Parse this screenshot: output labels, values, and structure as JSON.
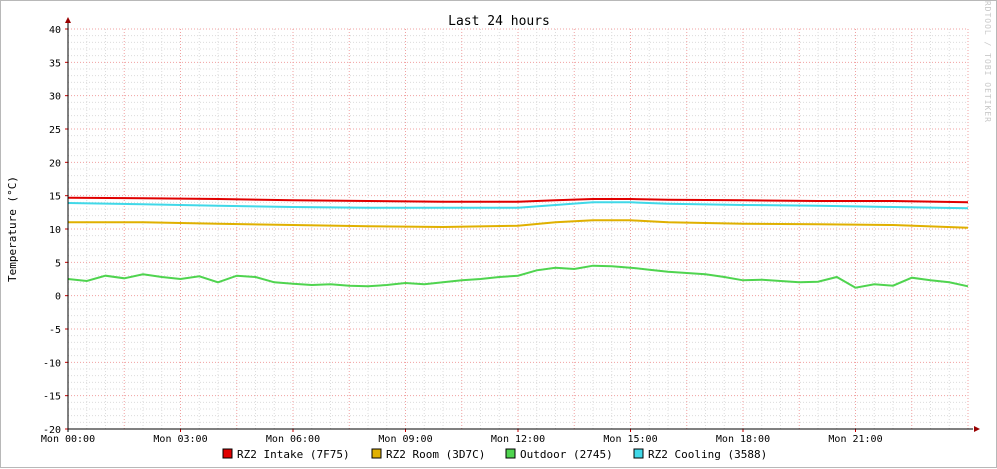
{
  "chart_data": {
    "type": "line",
    "title": "Last 24 hours",
    "ylabel": "Temperature (°C)",
    "watermark": "RRDTOOL / TOBI OETIKER",
    "ylim": [
      -20,
      40
    ],
    "y_ticks": [
      -20,
      -15,
      -10,
      -5,
      0,
      5,
      10,
      15,
      20,
      25,
      30,
      35,
      40
    ],
    "x_hours_range": [
      0,
      24
    ],
    "x_tick_hours": [
      0,
      3,
      6,
      9,
      12,
      15,
      18,
      21
    ],
    "x_tick_labels": [
      "Mon 00:00",
      "Mon 03:00",
      "Mon 06:00",
      "Mon 09:00",
      "Mon 12:00",
      "Mon 15:00",
      "Mon 18:00",
      "Mon 21:00"
    ],
    "grid": true,
    "legend_position": "bottom",
    "series": [
      {
        "name": "RZ2 Intake (7F75)",
        "color": "#e00000",
        "x": [
          0,
          2,
          4,
          6,
          8,
          10,
          12,
          13,
          14,
          15,
          16,
          18,
          20,
          22,
          24
        ],
        "y": [
          14.7,
          14.6,
          14.5,
          14.3,
          14.2,
          14.1,
          14.1,
          14.3,
          14.5,
          14.5,
          14.4,
          14.3,
          14.2,
          14.2,
          14.0
        ]
      },
      {
        "name": "RZ2 Room (3D7C)",
        "color": "#e0b000",
        "x": [
          0,
          2,
          4,
          6,
          8,
          10,
          12,
          13,
          14,
          15,
          16,
          18,
          20,
          22,
          24
        ],
        "y": [
          11.0,
          11.0,
          10.8,
          10.6,
          10.4,
          10.3,
          10.5,
          11.0,
          11.3,
          11.3,
          11.0,
          10.8,
          10.7,
          10.6,
          10.2
        ]
      },
      {
        "name": "Outdoor (2745)",
        "color": "#4fd44f",
        "x": [
          0,
          0.5,
          1,
          1.5,
          2,
          2.5,
          3,
          3.5,
          4,
          4.5,
          5,
          5.5,
          6,
          6.5,
          7,
          7.5,
          8,
          8.5,
          9,
          9.5,
          10,
          10.5,
          11,
          11.5,
          12,
          12.5,
          13,
          13.5,
          14,
          14.5,
          15,
          15.5,
          16,
          16.5,
          17,
          17.5,
          18,
          18.5,
          19,
          19.5,
          20,
          20.5,
          21,
          21.5,
          22,
          22.5,
          23,
          23.5,
          24
        ],
        "y": [
          2.5,
          2.2,
          3.0,
          2.6,
          3.2,
          2.8,
          2.5,
          2.9,
          2.0,
          3.0,
          2.8,
          2.0,
          1.8,
          1.6,
          1.7,
          1.5,
          1.4,
          1.6,
          1.9,
          1.7,
          2.0,
          2.3,
          2.5,
          2.8,
          3.0,
          3.8,
          4.2,
          4.0,
          4.5,
          4.4,
          4.2,
          3.9,
          3.6,
          3.4,
          3.2,
          2.8,
          2.3,
          2.4,
          2.2,
          2.0,
          2.1,
          2.8,
          1.2,
          1.7,
          1.5,
          2.7,
          2.3,
          2.0,
          1.4
        ]
      },
      {
        "name": "RZ2 Cooling (3588)",
        "color": "#40d8e8",
        "x": [
          0,
          2,
          4,
          6,
          8,
          10,
          12,
          13,
          14,
          15,
          16,
          18,
          20,
          22,
          24
        ],
        "y": [
          13.9,
          13.7,
          13.5,
          13.3,
          13.2,
          13.2,
          13.2,
          13.6,
          14.0,
          14.0,
          13.8,
          13.6,
          13.5,
          13.3,
          13.1
        ]
      }
    ]
  }
}
